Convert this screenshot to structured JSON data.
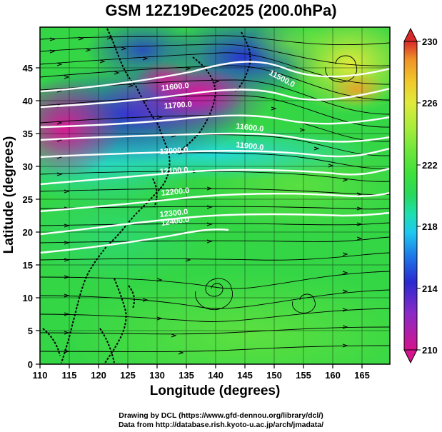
{
  "title": "GSM 12Z19Dec2025 (200.0hPa)",
  "x_axis": {
    "label": "Longitude (degrees)",
    "ticks": [
      "110",
      "115",
      "120",
      "125",
      "130",
      "135",
      "140",
      "145",
      "150",
      "155",
      "160",
      "165"
    ]
  },
  "y_axis": {
    "label": "Latitude  (degrees)",
    "ticks": [
      "0",
      "5",
      "10",
      "15",
      "20",
      "25",
      "30",
      "35",
      "40",
      "45"
    ]
  },
  "colorbar": {
    "ticks": [
      "210",
      "214",
      "218",
      "222",
      "226",
      "230"
    ],
    "colors": [
      "#d4148c",
      "#8a2bc8",
      "#2a2ad0",
      "#1e74e8",
      "#1ec8f0",
      "#1ee0b0",
      "#28d860",
      "#3ee03c",
      "#6ae63c",
      "#a8ec3c",
      "#e0ea3c",
      "#f0c82c",
      "#f09428",
      "#e85a28",
      "#d82a2a"
    ]
  },
  "contour_labels": [
    "11600.0",
    "11700.0",
    "11500.0",
    "11600.0",
    "11900.0",
    "12000.0",
    "12100.0",
    "12200.0",
    "12300.0",
    "12400.0"
  ],
  "credits": [
    "Drawing by DCL (https://www.gfd-dennou.org/library/dcl/)",
    "Data from http://database.rish.kyoto-u.ac.jp/arch/jmadata/"
  ]
}
